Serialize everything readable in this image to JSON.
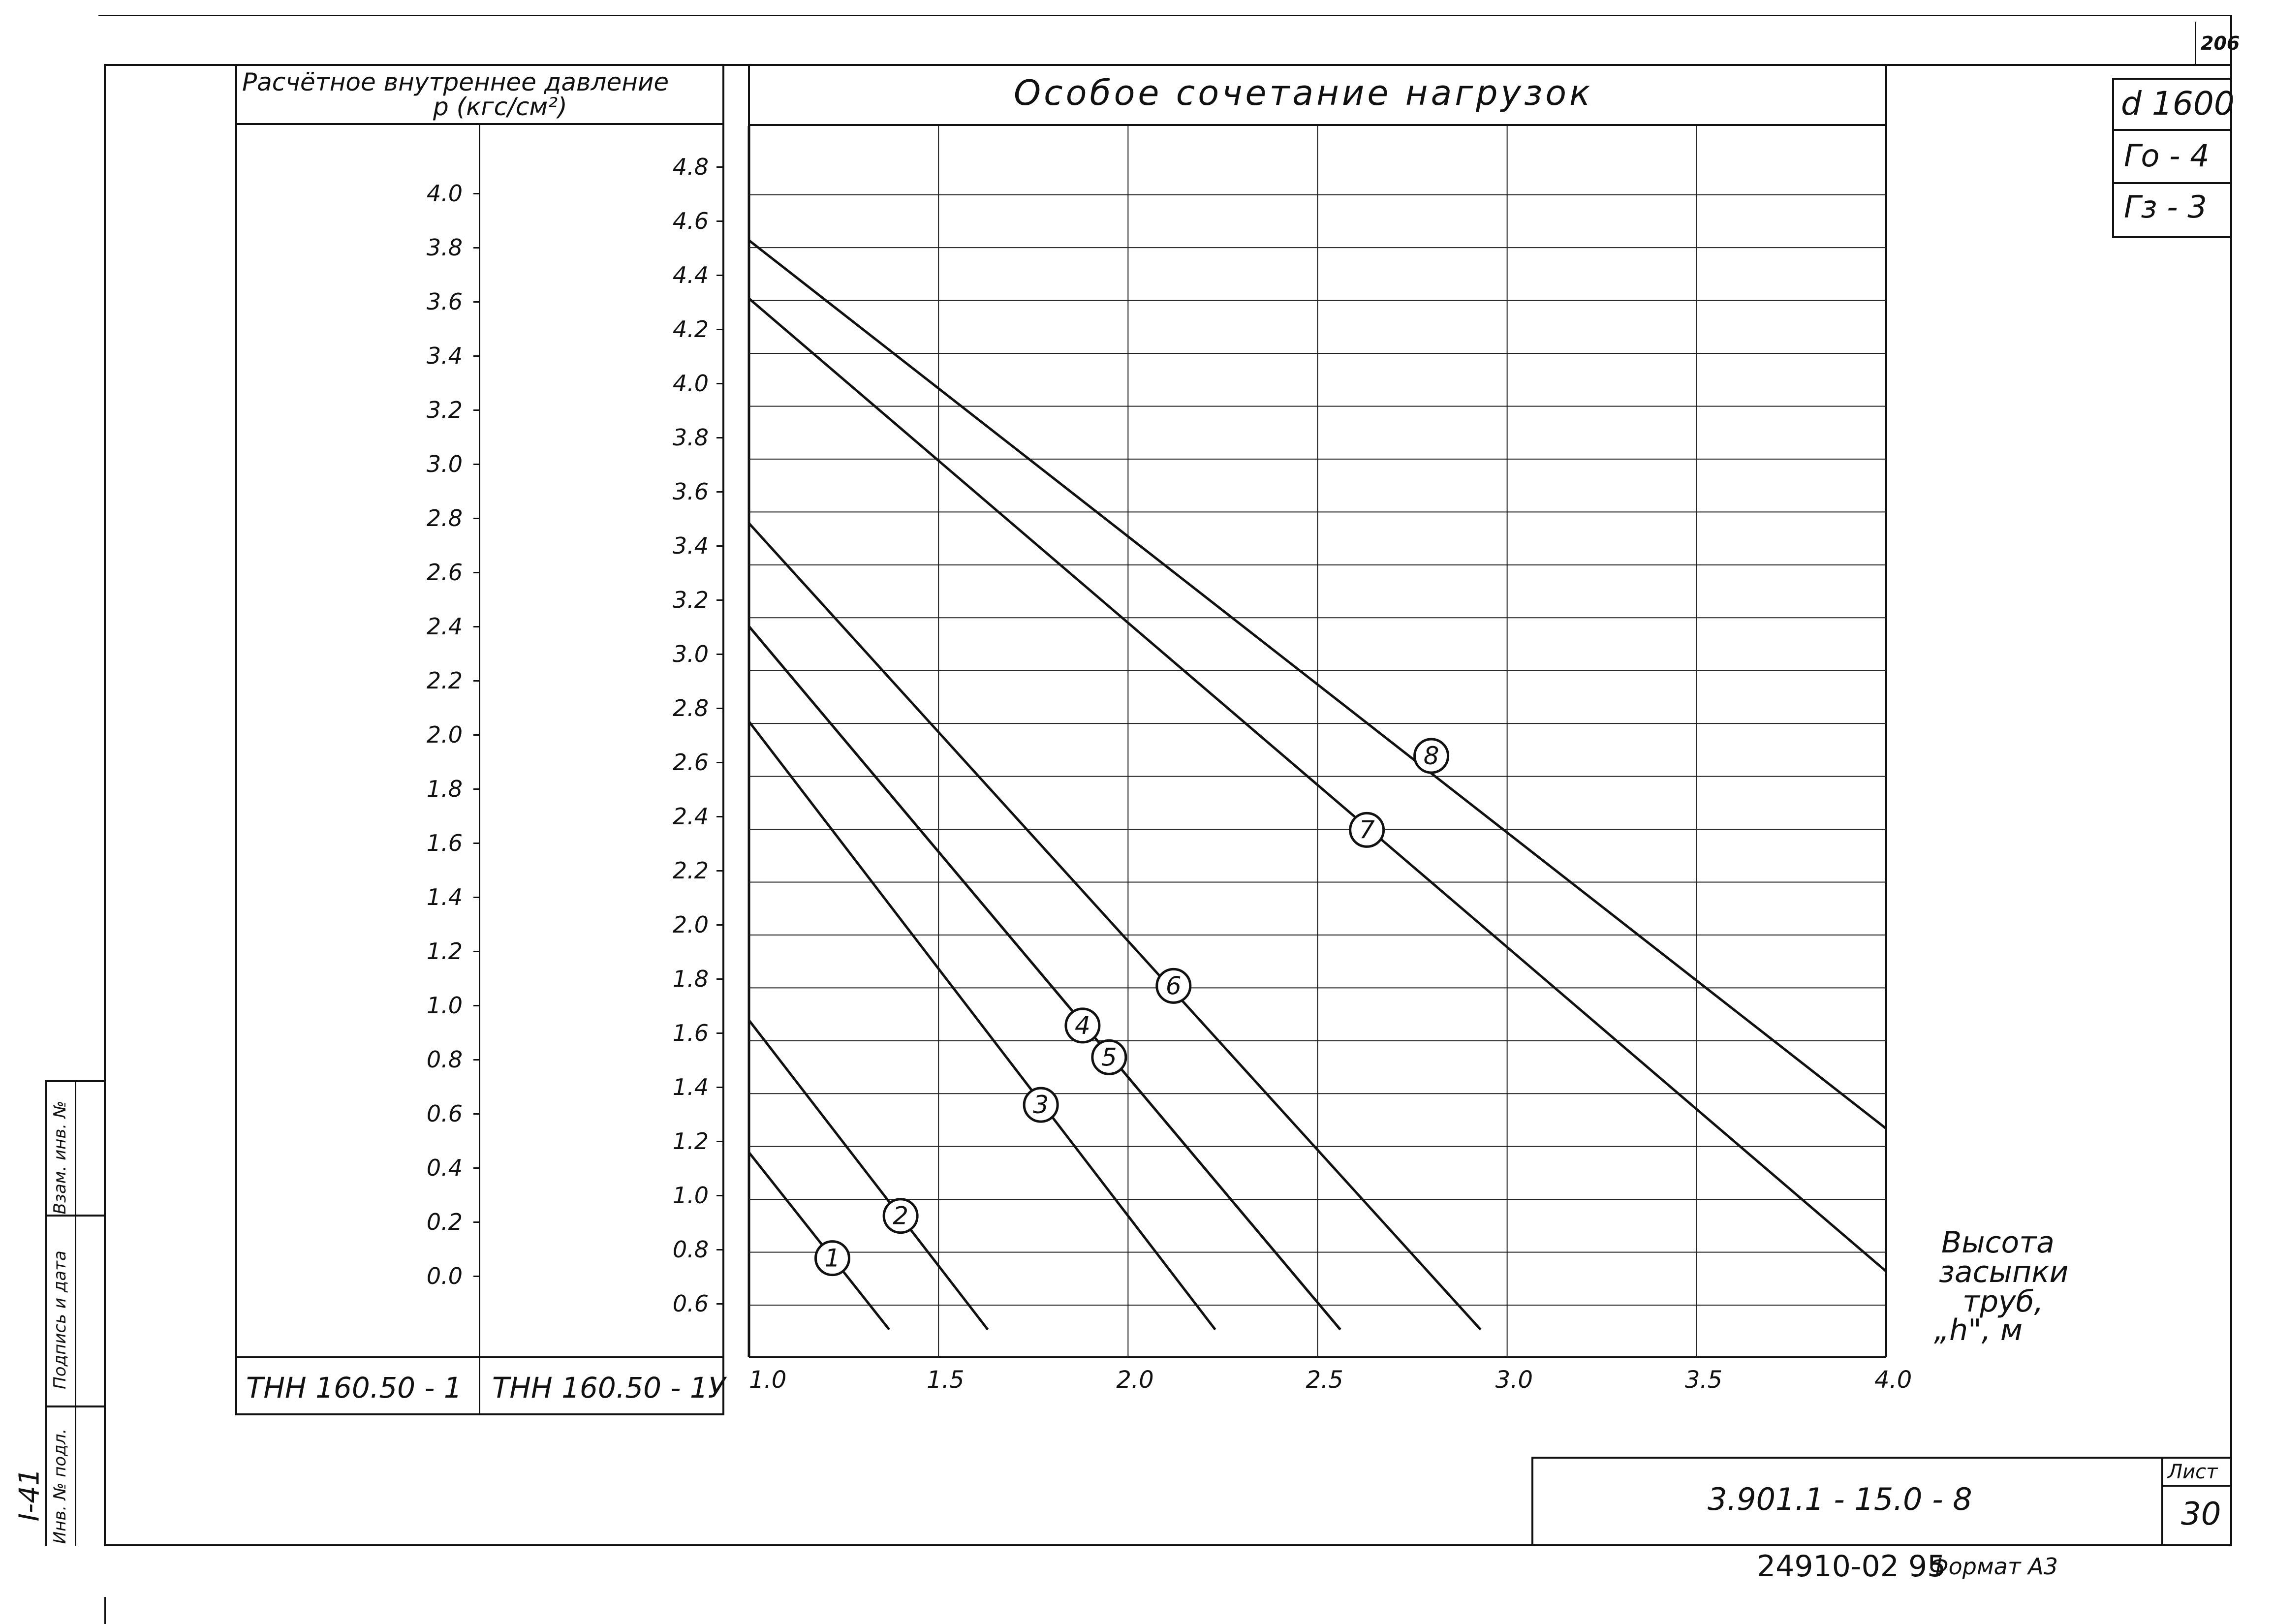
{
  "sheet": {
    "page_number": "206",
    "side_labels": [
      "Взам. инв. №",
      "Подпись и дата",
      "Инв. № подл."
    ],
    "side_code": "I-41",
    "doc_code": "3.901.1 - 15.0 - 8",
    "sheet_label": "Лист",
    "sheet_number": "30",
    "footer": "24910-02 95",
    "format_label": "Формат А3"
  },
  "stamps": [
    "d 1600",
    "Го - 4",
    "Гз - 3"
  ],
  "left_table": {
    "header_line1": "Расчётное внутреннее давление",
    "header_line2": "p (кгс/см²)",
    "col1_label": "ТНН 160.50 - 1",
    "col2_label": "ТНН 160.50 - 1У",
    "col1_ticks": [
      "4.0",
      "3.8",
      "3.6",
      "3.4",
      "3.2",
      "3.0",
      "2.8",
      "2.6",
      "2.4",
      "2.2",
      "2.0",
      "1.8",
      "1.6",
      "1.4",
      "1.2",
      "1.0",
      "0.8",
      "0.6",
      "0.4",
      "0.2",
      "0.0"
    ],
    "col2_ticks": [
      "4.8",
      "4.6",
      "4.4",
      "4.2",
      "4.0",
      "3.8",
      "3.6",
      "3.4",
      "3.2",
      "3.0",
      "2.8",
      "2.6",
      "2.4",
      "2.2",
      "2.0",
      "1.8",
      "1.6",
      "1.4",
      "1.2",
      "1.0",
      "0.8",
      "0.6"
    ]
  },
  "chart_data": {
    "type": "line",
    "title": "Особое сочетание нагрузок",
    "xlabel_lines": [
      "Высота",
      "засыпки",
      "труб,",
      "„h\", м"
    ],
    "xlim": [
      1.0,
      4.0
    ],
    "ylim": [
      0.5,
      4.9
    ],
    "y_scale_note": "right pressure scale (ТНН 160.50-1У)",
    "x_ticks": [
      "1.0",
      "1.5",
      "2.0",
      "2.5",
      "3.0",
      "3.5",
      "4.0"
    ],
    "series": [
      {
        "name": "1",
        "points": [
          [
            1.0,
            1.17
          ],
          [
            1.37,
            0.5
          ]
        ],
        "label_at": [
          1.22,
          0.77
        ]
      },
      {
        "name": "2",
        "points": [
          [
            1.0,
            1.67
          ],
          [
            1.63,
            0.5
          ]
        ],
        "label_at": [
          1.4,
          0.93
        ]
      },
      {
        "name": "3",
        "points": [
          [
            1.0,
            2.8
          ],
          [
            2.23,
            0.5
          ]
        ],
        "label_at": [
          1.77,
          1.35
        ]
      },
      {
        "name": "4",
        "points": [
          [
            1.0,
            3.16
          ],
          [
            2.56,
            0.5
          ]
        ],
        "label_at": [
          1.88,
          1.65
        ]
      },
      {
        "name": "5",
        "points": [
          [
            1.0,
            3.16
          ],
          [
            2.56,
            0.5
          ]
        ],
        "label_at": [
          1.95,
          1.53
        ]
      },
      {
        "name": "6",
        "points": [
          [
            1.0,
            3.55
          ],
          [
            2.93,
            0.5
          ]
        ],
        "label_at": [
          2.12,
          1.8
        ]
      },
      {
        "name": "7",
        "points": [
          [
            1.0,
            4.4
          ],
          [
            4.0,
            0.72
          ]
        ],
        "label_at": [
          2.63,
          2.39
        ]
      },
      {
        "name": "8",
        "points": [
          [
            1.0,
            4.62
          ],
          [
            4.0,
            1.26
          ]
        ],
        "label_at": [
          2.8,
          2.67
        ]
      }
    ]
  }
}
